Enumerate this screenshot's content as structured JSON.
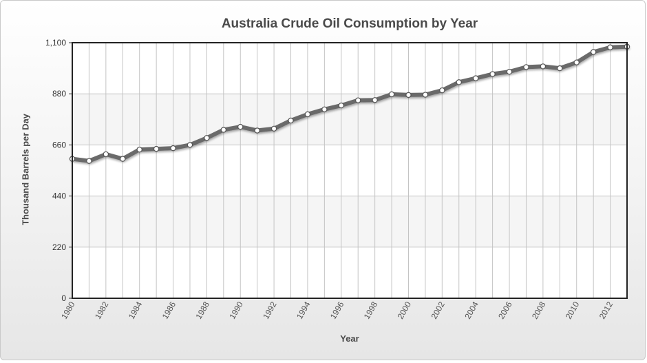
{
  "chart_data": {
    "type": "line",
    "title": "Australia Crude Oil Consumption by Year",
    "xlabel": "Year",
    "ylabel": "Thousand Barrels per Day",
    "ylim": [
      0,
      1100
    ],
    "yticks": [
      "0",
      "220",
      "440",
      "660",
      "880",
      "1,100"
    ],
    "xlim": [
      1980,
      2013
    ],
    "xticks": [
      "1980",
      "1982",
      "1984",
      "1986",
      "1988",
      "1990",
      "1992",
      "1994",
      "1996",
      "1998",
      "2000",
      "2002",
      "2004",
      "2006",
      "2008",
      "2010",
      "2012"
    ],
    "x": [
      1980,
      1981,
      1982,
      1983,
      1984,
      1985,
      1986,
      1987,
      1988,
      1989,
      1990,
      1991,
      1992,
      1993,
      1994,
      1995,
      1996,
      1997,
      1998,
      1999,
      2000,
      2001,
      2002,
      2003,
      2004,
      2005,
      2006,
      2007,
      2008,
      2009,
      2010,
      2011,
      2012,
      2013
    ],
    "series": [
      {
        "values": [
          600,
          591,
          620,
          600,
          640,
          643,
          646,
          660,
          690,
          725,
          738,
          722,
          730,
          765,
          792,
          813,
          830,
          852,
          853,
          878,
          875,
          876,
          895,
          930,
          947,
          965,
          975,
          995,
          998,
          990,
          1015,
          1060,
          1080,
          1083
        ]
      }
    ],
    "grid": true,
    "line_color": "#6b6b6b",
    "marker_color": "#ffffff",
    "band_color": "#f5f5f5"
  }
}
